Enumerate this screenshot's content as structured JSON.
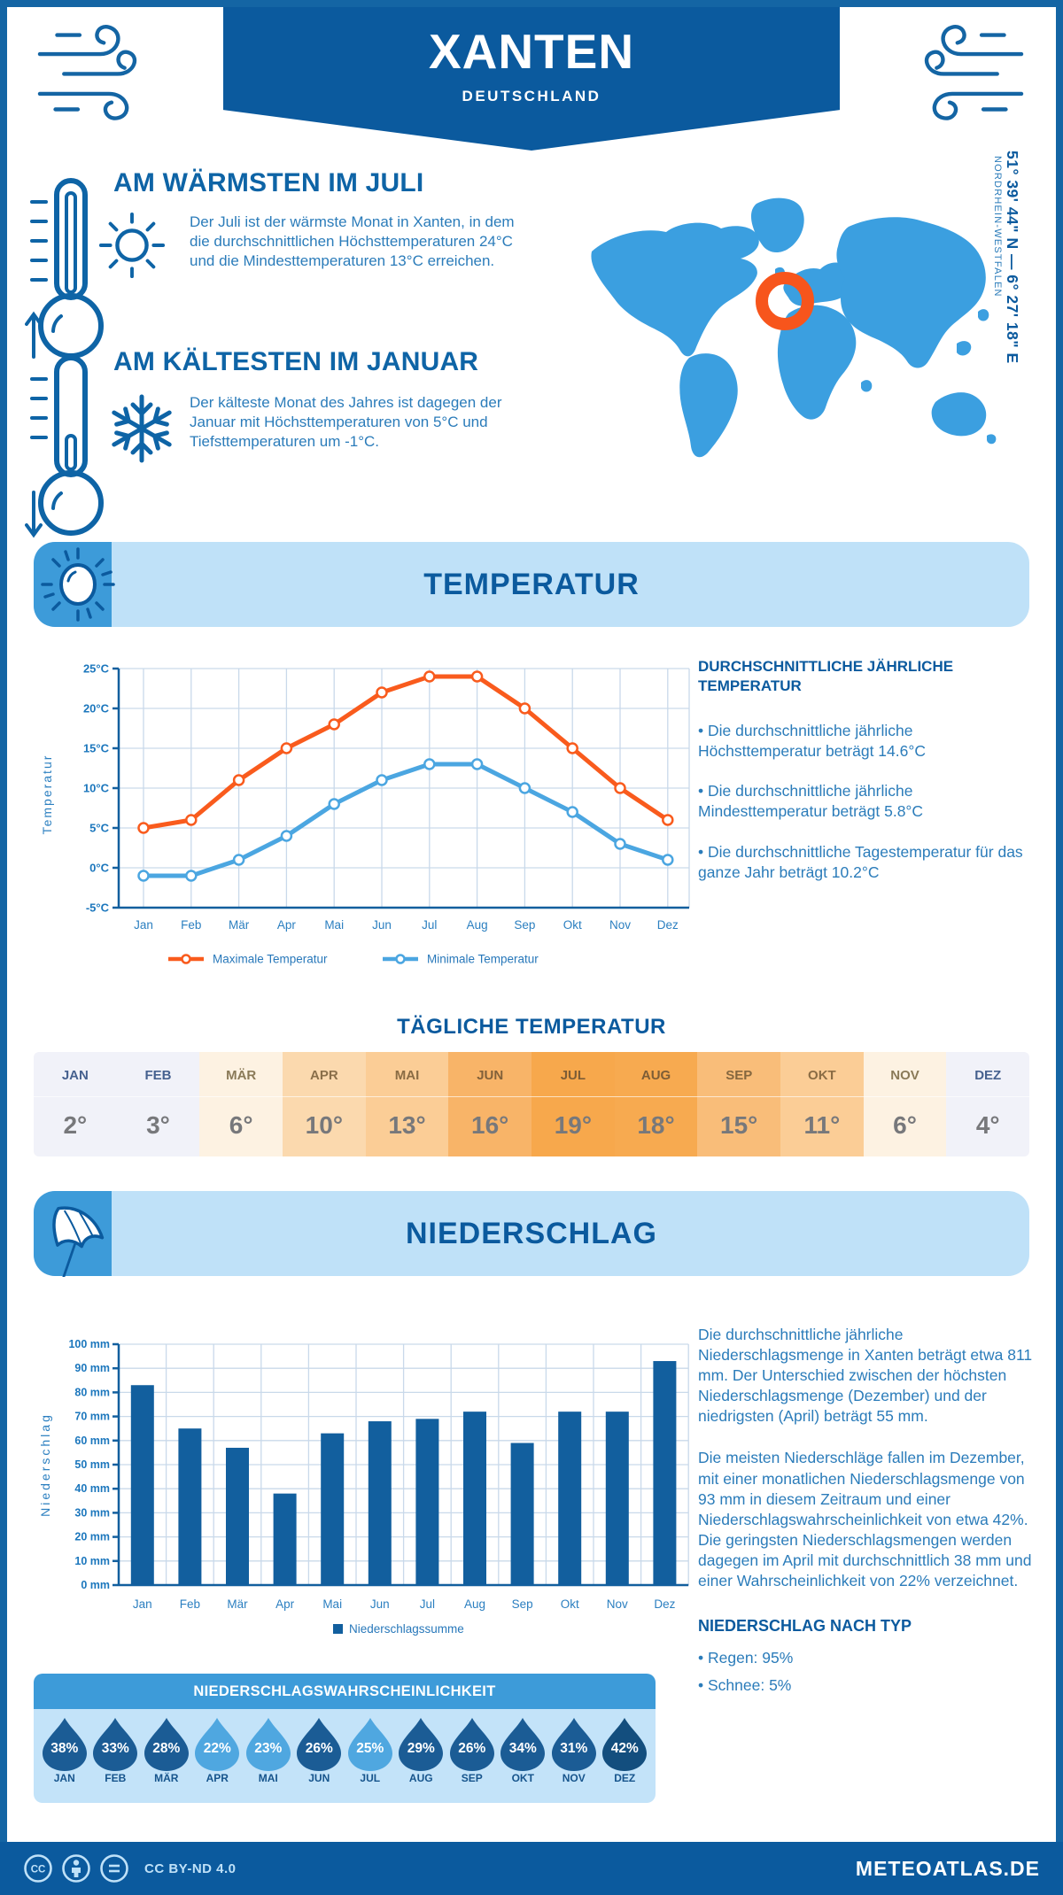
{
  "header": {
    "title": "XANTEN",
    "subtitle": "DEUTSCHLAND"
  },
  "geo": {
    "coords": "51° 39' 44\" N — 6° 27' 18\" E",
    "region": "NORDRHEIN-WESTFALEN"
  },
  "warmest": {
    "title": "AM WÄRMSTEN IM JULI",
    "text": "Der Juli ist der wärmste Monat in Xanten, in dem die durchschnittlichen Höchsttemperaturen 24°C und die Mindesttemperaturen 13°C erreichen."
  },
  "coldest": {
    "title": "AM KÄLTESTEN IM JANUAR",
    "text": "Der kälteste Monat des Jahres ist dagegen der Januar mit Höchsttemperaturen von 5°C und Tiefsttemperaturen um -1°C."
  },
  "temperature_section": {
    "banner": "TEMPERATUR",
    "annual_header": "DURCHSCHNITTLICHE JÄHRLICHE TEMPERATUR",
    "bullets": [
      "• Die durchschnittliche jährliche Höchsttemperatur beträgt 14.6°C",
      "• Die durchschnittliche jährliche Mindesttemperatur beträgt 5.8°C",
      "• Die durchschnittliche Tagestemperatur für das ganze Jahr beträgt 10.2°C"
    ]
  },
  "daily_table": {
    "title": "TÄGLICHE TEMPERATUR",
    "months": [
      "JAN",
      "FEB",
      "MÄR",
      "APR",
      "MAI",
      "JUN",
      "JUL",
      "AUG",
      "SEP",
      "OKT",
      "NOV",
      "DEZ"
    ],
    "values": [
      "2°",
      "3°",
      "6°",
      "10°",
      "13°",
      "16°",
      "19°",
      "18°",
      "15°",
      "11°",
      "6°",
      "4°"
    ],
    "cell_colors": [
      "#f1f2f9",
      "#f1f2f9",
      "#fdf2e2",
      "#fbd9ae",
      "#fbcd96",
      "#f8b468",
      "#f7a84c",
      "#f7aa50",
      "#f9bd79",
      "#fbcd96",
      "#fdf2e2",
      "#f1f2f9"
    ],
    "month_colors": [
      "#46618f",
      "#46618f",
      "#8a7a58",
      "#8a6f4a",
      "#8a6c44",
      "#82613a",
      "#7d5d36",
      "#7d5d36",
      "#85673f",
      "#8a6c44",
      "#8a7a58",
      "#46618f"
    ],
    "value_color": "#77787b"
  },
  "precipitation_section": {
    "banner": "NIEDERSCHLAG",
    "paragraph1": "Die durchschnittliche jährliche Niederschlagsmenge in Xanten beträgt etwa 811 mm. Der Unterschied zwischen der höchsten Niederschlagsmenge (Dezember) und der niedrigsten (April) beträgt 55 mm.",
    "paragraph2": "Die meisten Niederschläge fallen im Dezember, mit einer monatlichen Niederschlagsmenge von 93 mm in diesem Zeitraum und einer Niederschlagswahrscheinlichkeit von etwa 42%. Die geringsten Niederschlagsmengen werden dagegen im April mit durchschnittlich 38 mm und einer Wahrscheinlichkeit von 22% verzeichnet.",
    "type_header": "NIEDERSCHLAG NACH TYP",
    "types": [
      "• Regen: 95%",
      "• Schnee: 5%"
    ],
    "probability": {
      "title": "NIEDERSCHLAGSWAHRSCHEINLICHKEIT",
      "months": [
        "JAN",
        "FEB",
        "MÄR",
        "APR",
        "MAI",
        "JUN",
        "JUL",
        "AUG",
        "SEP",
        "OKT",
        "NOV",
        "DEZ"
      ],
      "values": [
        "38%",
        "33%",
        "28%",
        "22%",
        "23%",
        "26%",
        "25%",
        "29%",
        "26%",
        "34%",
        "31%",
        "42%"
      ],
      "drop_colors": [
        "#1b5c95",
        "#1b5c95",
        "#1b5c95",
        "#4fa7e0",
        "#4fa7e0",
        "#1b5c95",
        "#4fa7e0",
        "#1b5c95",
        "#1b5c95",
        "#1b5c95",
        "#1b5c95",
        "#134e7e"
      ]
    }
  },
  "chart_data": [
    {
      "type": "line",
      "title": "Temperatur",
      "categories": [
        "Jan",
        "Feb",
        "Mär",
        "Apr",
        "Mai",
        "Jun",
        "Jul",
        "Aug",
        "Sep",
        "Okt",
        "Nov",
        "Dez"
      ],
      "series": [
        {
          "name": "Maximale Temperatur",
          "color": "#f95b1d",
          "values": [
            5,
            6,
            11,
            15,
            18,
            22,
            24,
            24,
            20,
            15,
            10,
            6
          ]
        },
        {
          "name": "Minimale Temperatur",
          "color": "#4ba6e1",
          "values": [
            -1,
            -1,
            1,
            4,
            8,
            11,
            13,
            13,
            10,
            7,
            3,
            1
          ]
        }
      ],
      "ylabel": "Temperatur",
      "ytick_suffix": "°C",
      "ylim": [
        -5,
        25
      ],
      "ystep": 5,
      "grid": true,
      "legend_position": "bottom"
    },
    {
      "type": "bar",
      "title": "Niederschlag",
      "categories": [
        "Jan",
        "Feb",
        "Mär",
        "Apr",
        "Mai",
        "Jun",
        "Jul",
        "Aug",
        "Sep",
        "Okt",
        "Nov",
        "Dez"
      ],
      "values": [
        83,
        65,
        57,
        38,
        63,
        68,
        69,
        72,
        59,
        72,
        72,
        93
      ],
      "ylabel": "Niederschlag",
      "ytick_suffix": " mm",
      "ylim": [
        0,
        100
      ],
      "ystep": 10,
      "bar_color": "#125f9e",
      "legend": "Niederschlagssumme",
      "grid": true
    }
  ],
  "footer": {
    "license": "CC BY-ND 4.0",
    "brand": "METEOATLAS.DE"
  },
  "colors": {
    "primary": "#0b5a9e",
    "accent": "#3d9bd9",
    "light_banner": "#bfe1f8",
    "body_text": "#2b7cba",
    "map_blue": "#3b9fe0",
    "marker_orange": "#f7551c",
    "bar_blue": "#125f9e",
    "max_line": "#f95b1d",
    "min_line": "#4ba6e1",
    "prob_bg": "#c3e3f9"
  }
}
